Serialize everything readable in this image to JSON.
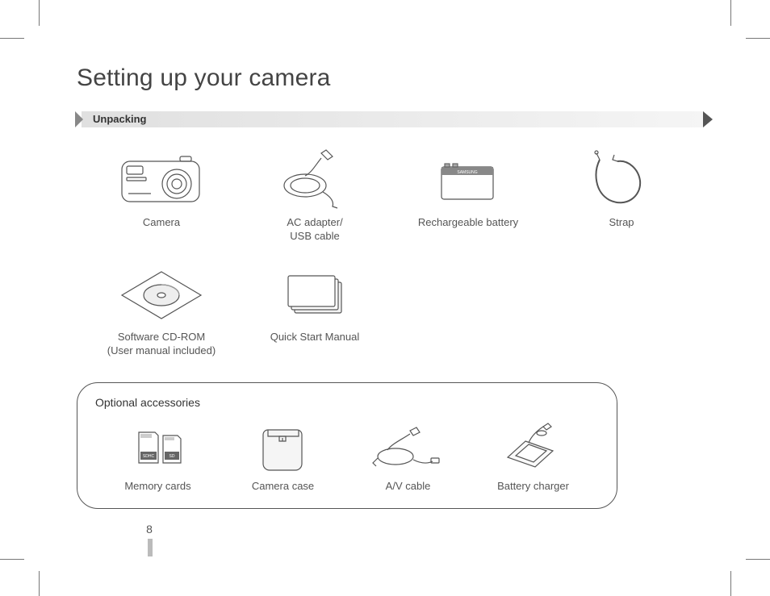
{
  "title": "Setting up your camera",
  "section_label": "Unpacking",
  "included_items": [
    {
      "name": "camera",
      "caption": "Camera"
    },
    {
      "name": "ac-adapter",
      "caption": "AC adapter/\nUSB cable"
    },
    {
      "name": "battery",
      "caption": "Rechargeable battery"
    },
    {
      "name": "strap",
      "caption": "Strap"
    },
    {
      "name": "cdrom",
      "caption": "Software CD-ROM\n(User manual included)"
    },
    {
      "name": "manual",
      "caption": "Quick Start Manual"
    }
  ],
  "optional_title": "Optional accessories",
  "optional_items": [
    {
      "name": "memory-cards",
      "caption": "Memory cards"
    },
    {
      "name": "camera-case",
      "caption": "Camera case"
    },
    {
      "name": "av-cable",
      "caption": "A/V cable"
    },
    {
      "name": "battery-charger",
      "caption": "Battery charger"
    }
  ],
  "page_number": "8",
  "battery_brand": "SAMSUNG",
  "sd_labels": [
    "SDHC",
    "SD"
  ]
}
